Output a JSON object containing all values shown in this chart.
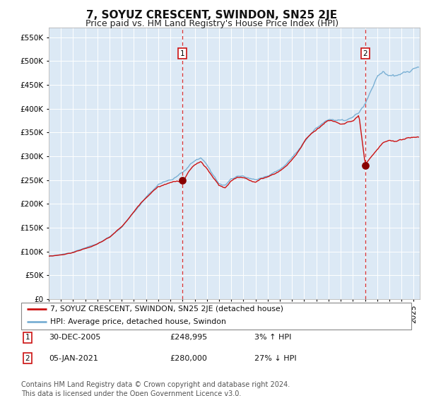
{
  "title": "7, SOYUZ CRESCENT, SWINDON, SN25 2JE",
  "subtitle": "Price paid vs. HM Land Registry's House Price Index (HPI)",
  "title_fontsize": 11,
  "subtitle_fontsize": 9,
  "background_color": "#ffffff",
  "plot_bg_color": "#dce9f5",
  "grid_color": "#ffffff",
  "ylim": [
    0,
    570000
  ],
  "yticks": [
    0,
    50000,
    100000,
    150000,
    200000,
    250000,
    300000,
    350000,
    400000,
    450000,
    500000,
    550000
  ],
  "ytick_labels": [
    "£0",
    "£50K",
    "£100K",
    "£150K",
    "£200K",
    "£250K",
    "£300K",
    "£350K",
    "£400K",
    "£450K",
    "£500K",
    "£550K"
  ],
  "xlim_start": 1995.0,
  "xlim_end": 2025.5,
  "xtick_years": [
    1995,
    1996,
    1997,
    1998,
    1999,
    2000,
    2001,
    2002,
    2003,
    2004,
    2005,
    2006,
    2007,
    2008,
    2009,
    2010,
    2011,
    2012,
    2013,
    2014,
    2015,
    2016,
    2017,
    2018,
    2019,
    2020,
    2021,
    2022,
    2023,
    2024,
    2025
  ],
  "sale1_x": 2005.99,
  "sale1_y": 248995,
  "sale1_label": "1",
  "sale2_x": 2021.01,
  "sale2_y": 280000,
  "sale2_label": "2",
  "vline_color": "#dd3333",
  "vline_style": "--",
  "dot_color": "#880000",
  "dot_size": 60,
  "red_line_color": "#cc1111",
  "blue_line_color": "#7ab0d4",
  "legend_label_red": "7, SOYUZ CRESCENT, SWINDON, SN25 2JE (detached house)",
  "legend_label_blue": "HPI: Average price, detached house, Swindon",
  "table_rows": [
    {
      "num": "1",
      "date": "30-DEC-2005",
      "price": "£248,995",
      "change": "3% ↑ HPI"
    },
    {
      "num": "2",
      "date": "05-JAN-2021",
      "price": "£280,000",
      "change": "27% ↓ HPI"
    }
  ],
  "footer": "Contains HM Land Registry data © Crown copyright and database right 2024.\nThis data is licensed under the Open Government Licence v3.0.",
  "footer_fontsize": 7.0,
  "hpi_anchors": [
    [
      1995.0,
      90000
    ],
    [
      1996.0,
      93000
    ],
    [
      1997.0,
      98000
    ],
    [
      1998.0,
      106000
    ],
    [
      1999.0,
      115000
    ],
    [
      2000.0,
      128000
    ],
    [
      2001.0,
      148000
    ],
    [
      2002.0,
      178000
    ],
    [
      2003.0,
      210000
    ],
    [
      2004.0,
      238000
    ],
    [
      2005.0,
      248000
    ],
    [
      2005.5,
      252000
    ],
    [
      2006.0,
      260000
    ],
    [
      2006.5,
      272000
    ],
    [
      2007.0,
      283000
    ],
    [
      2007.5,
      288000
    ],
    [
      2008.0,
      272000
    ],
    [
      2008.5,
      252000
    ],
    [
      2009.0,
      236000
    ],
    [
      2009.5,
      233000
    ],
    [
      2010.0,
      246000
    ],
    [
      2010.5,
      250000
    ],
    [
      2011.0,
      250000
    ],
    [
      2011.5,
      245000
    ],
    [
      2012.0,
      242000
    ],
    [
      2012.5,
      248000
    ],
    [
      2013.0,
      252000
    ],
    [
      2013.5,
      258000
    ],
    [
      2014.0,
      265000
    ],
    [
      2014.5,
      275000
    ],
    [
      2015.0,
      290000
    ],
    [
      2015.5,
      308000
    ],
    [
      2016.0,
      325000
    ],
    [
      2016.5,
      340000
    ],
    [
      2017.0,
      352000
    ],
    [
      2017.5,
      362000
    ],
    [
      2018.0,
      372000
    ],
    [
      2018.5,
      370000
    ],
    [
      2019.0,
      366000
    ],
    [
      2019.5,
      368000
    ],
    [
      2020.0,
      372000
    ],
    [
      2020.5,
      380000
    ],
    [
      2021.0,
      395000
    ],
    [
      2021.5,
      420000
    ],
    [
      2022.0,
      448000
    ],
    [
      2022.5,
      460000
    ],
    [
      2023.0,
      452000
    ],
    [
      2023.5,
      448000
    ],
    [
      2024.0,
      450000
    ],
    [
      2024.5,
      455000
    ],
    [
      2025.0,
      460000
    ],
    [
      2025.4,
      462000
    ]
  ],
  "red_anchors": [
    [
      1995.0,
      90000
    ],
    [
      1996.0,
      93000
    ],
    [
      1997.0,
      98000
    ],
    [
      1998.0,
      107000
    ],
    [
      1999.0,
      116000
    ],
    [
      2000.0,
      130000
    ],
    [
      2001.0,
      152000
    ],
    [
      2002.0,
      183000
    ],
    [
      2003.0,
      215000
    ],
    [
      2004.0,
      240000
    ],
    [
      2005.0,
      248000
    ],
    [
      2005.5,
      251000
    ],
    [
      2005.99,
      248995
    ],
    [
      2006.5,
      270000
    ],
    [
      2007.0,
      285000
    ],
    [
      2007.5,
      290000
    ],
    [
      2008.0,
      275000
    ],
    [
      2008.5,
      255000
    ],
    [
      2009.0,
      238000
    ],
    [
      2009.5,
      232000
    ],
    [
      2010.0,
      245000
    ],
    [
      2010.5,
      252000
    ],
    [
      2011.0,
      252000
    ],
    [
      2011.5,
      248000
    ],
    [
      2012.0,
      244000
    ],
    [
      2012.5,
      250000
    ],
    [
      2013.0,
      255000
    ],
    [
      2013.5,
      260000
    ],
    [
      2014.0,
      268000
    ],
    [
      2014.5,
      278000
    ],
    [
      2015.0,
      292000
    ],
    [
      2015.5,
      310000
    ],
    [
      2016.0,
      328000
    ],
    [
      2016.5,
      344000
    ],
    [
      2017.0,
      356000
    ],
    [
      2017.5,
      366000
    ],
    [
      2018.0,
      375000
    ],
    [
      2018.5,
      373000
    ],
    [
      2019.0,
      368000
    ],
    [
      2019.5,
      372000
    ],
    [
      2020.0,
      375000
    ],
    [
      2020.5,
      382000
    ],
    [
      2021.01,
      280000
    ],
    [
      2021.5,
      292000
    ],
    [
      2022.0,
      305000
    ],
    [
      2022.5,
      318000
    ],
    [
      2023.0,
      325000
    ],
    [
      2023.5,
      322000
    ],
    [
      2024.0,
      325000
    ],
    [
      2024.5,
      328000
    ],
    [
      2025.0,
      330000
    ],
    [
      2025.4,
      332000
    ]
  ]
}
